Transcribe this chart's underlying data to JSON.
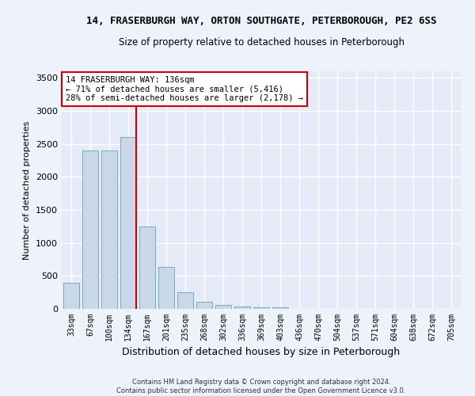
{
  "title_line1": "14, FRASERBURGH WAY, ORTON SOUTHGATE, PETERBOROUGH, PE2 6SS",
  "title_line2": "Size of property relative to detached houses in Peterborough",
  "xlabel": "Distribution of detached houses by size in Peterborough",
  "ylabel": "Number of detached properties",
  "footer_line1": "Contains HM Land Registry data © Crown copyright and database right 2024.",
  "footer_line2": "Contains public sector information licensed under the Open Government Licence v3.0.",
  "categories": [
    "33sqm",
    "67sqm",
    "100sqm",
    "134sqm",
    "167sqm",
    "201sqm",
    "235sqm",
    "268sqm",
    "302sqm",
    "336sqm",
    "369sqm",
    "403sqm",
    "436sqm",
    "470sqm",
    "504sqm",
    "537sqm",
    "571sqm",
    "604sqm",
    "638sqm",
    "672sqm",
    "705sqm"
  ],
  "values": [
    400,
    2400,
    2400,
    2600,
    1250,
    640,
    250,
    110,
    60,
    40,
    30,
    30,
    0,
    0,
    0,
    0,
    0,
    0,
    0,
    0,
    0
  ],
  "bar_color": "#c8d8e8",
  "bar_edge_color": "#7aaabb",
  "highlight_line_color": "#cc0000",
  "annotation_text": "14 FRASERBURGH WAY: 136sqm\n← 71% of detached houses are smaller (5,416)\n28% of semi-detached houses are larger (2,178) →",
  "annotation_box_facecolor": "#ffffff",
  "annotation_box_edgecolor": "#cc0000",
  "ylim": [
    0,
    3600
  ],
  "yticks": [
    0,
    500,
    1000,
    1500,
    2000,
    2500,
    3000,
    3500
  ],
  "bg_color": "#eef2fb",
  "grid_color": "#ffffff",
  "axis_bg_color": "#e4eaf7"
}
